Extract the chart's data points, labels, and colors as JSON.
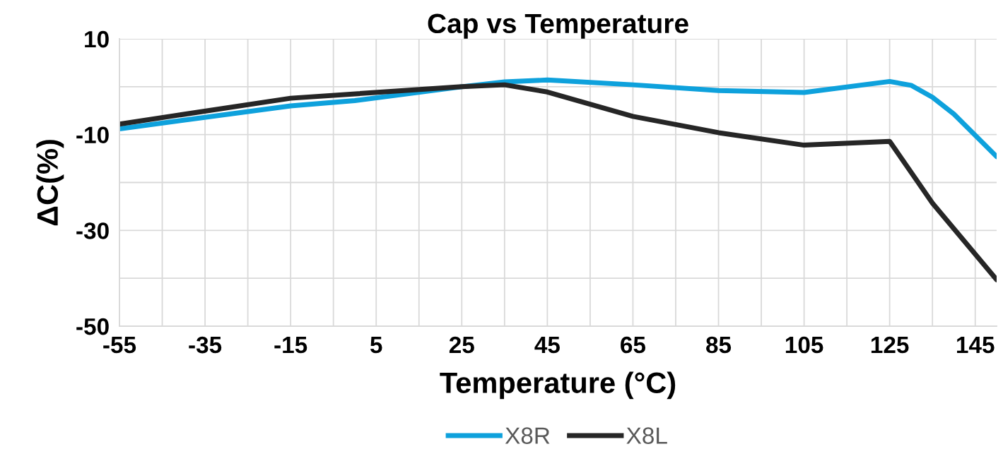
{
  "chart_data": {
    "type": "line",
    "title": "Cap vs Temperature",
    "xlabel": "Temperature (°C)",
    "ylabel": "ΔC(%)",
    "xlim": [
      -55,
      150
    ],
    "ylim": [
      -50,
      10
    ],
    "xticks": [
      -55,
      {
        "value": -45,
        "label": null
      },
      -35,
      {
        "value": -25,
        "label": null
      },
      -15,
      {
        "value": -5,
        "label": null
      },
      5,
      {
        "value": 15,
        "label": null
      },
      25,
      {
        "value": 35,
        "label": null
      },
      45,
      {
        "value": 55,
        "label": null
      },
      65,
      {
        "value": 75,
        "label": null
      },
      85,
      {
        "value": 95,
        "label": null
      },
      105,
      {
        "value": 115,
        "label": null
      },
      125,
      {
        "value": 135,
        "label": null
      },
      145
    ],
    "yticks": [
      -50,
      {
        "value": -40,
        "label": null
      },
      -30,
      {
        "value": -20,
        "label": null
      },
      -10,
      {
        "value": 0,
        "label": null
      },
      10
    ],
    "grid": true,
    "legend": "bottom",
    "marker": "none",
    "line_style": "solid",
    "series": [
      {
        "name": "X8R",
        "color": "#0ea1dc",
        "x": [
          -55,
          -15,
          0,
          25,
          35,
          45,
          65,
          85,
          105,
          125,
          130,
          135,
          140,
          150
        ],
        "values": [
          -8.8,
          -4.0,
          -2.9,
          0,
          1.0,
          1.4,
          0.4,
          -0.8,
          -1.2,
          1.1,
          0.3,
          -2.2,
          -5.7,
          -14.6
        ]
      },
      {
        "name": "X8L",
        "color": "#262626",
        "x": [
          -55,
          -15,
          25,
          35,
          45,
          65,
          85,
          105,
          125,
          135,
          150
        ],
        "values": [
          -7.8,
          -2.4,
          0,
          0.4,
          -1.1,
          -6.2,
          -9.6,
          -12.2,
          -11.4,
          -24.3,
          -40.3
        ]
      }
    ]
  }
}
